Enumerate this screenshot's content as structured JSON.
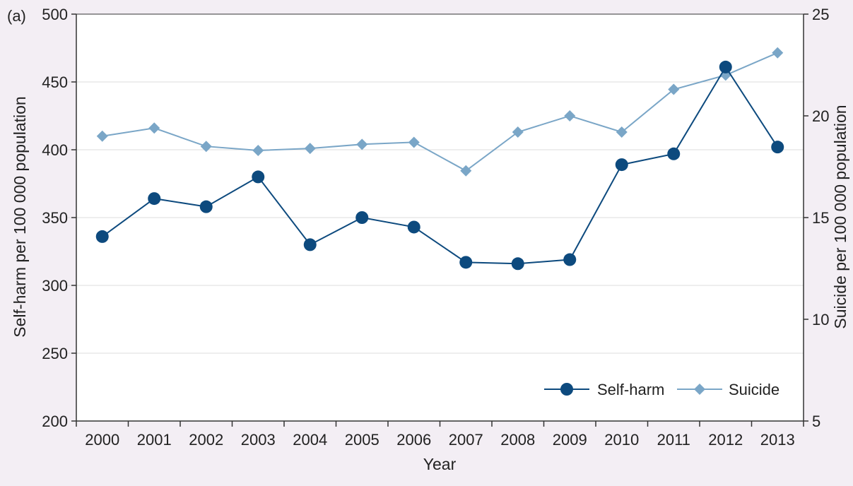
{
  "panel_label": "(a)",
  "chart_data": {
    "type": "line",
    "x": [
      "2000",
      "2001",
      "2002",
      "2003",
      "2004",
      "2005",
      "2006",
      "2007",
      "2008",
      "2009",
      "2010",
      "2011",
      "2012",
      "2013"
    ],
    "xlabel": "Year",
    "ylabel_left": "Self-harm per 100 000 population",
    "ylabel_right": "Suicide per 100 000 population",
    "ylim_left": [
      200,
      500
    ],
    "yticks_left": [
      "200",
      "250",
      "300",
      "350",
      "400",
      "450",
      "500"
    ],
    "ylim_right": [
      5,
      25
    ],
    "yticks_right": [
      "5",
      "10",
      "15",
      "20",
      "25"
    ],
    "grid": "horizontal",
    "legend_position": "bottom-right",
    "series": [
      {
        "name": "Self-harm",
        "axis": "left",
        "marker": "circle",
        "color": "#0d4a7e",
        "values": [
          336,
          364,
          358,
          380,
          330,
          350,
          343,
          317,
          316,
          319,
          389,
          397,
          461,
          402
        ]
      },
      {
        "name": "Suicide",
        "axis": "right",
        "marker": "diamond",
        "color": "#7aa6c7",
        "values": [
          19.0,
          19.4,
          18.5,
          18.3,
          18.4,
          18.6,
          18.7,
          17.3,
          19.2,
          20.0,
          19.2,
          21.3,
          22.0,
          23.1
        ]
      }
    ]
  }
}
